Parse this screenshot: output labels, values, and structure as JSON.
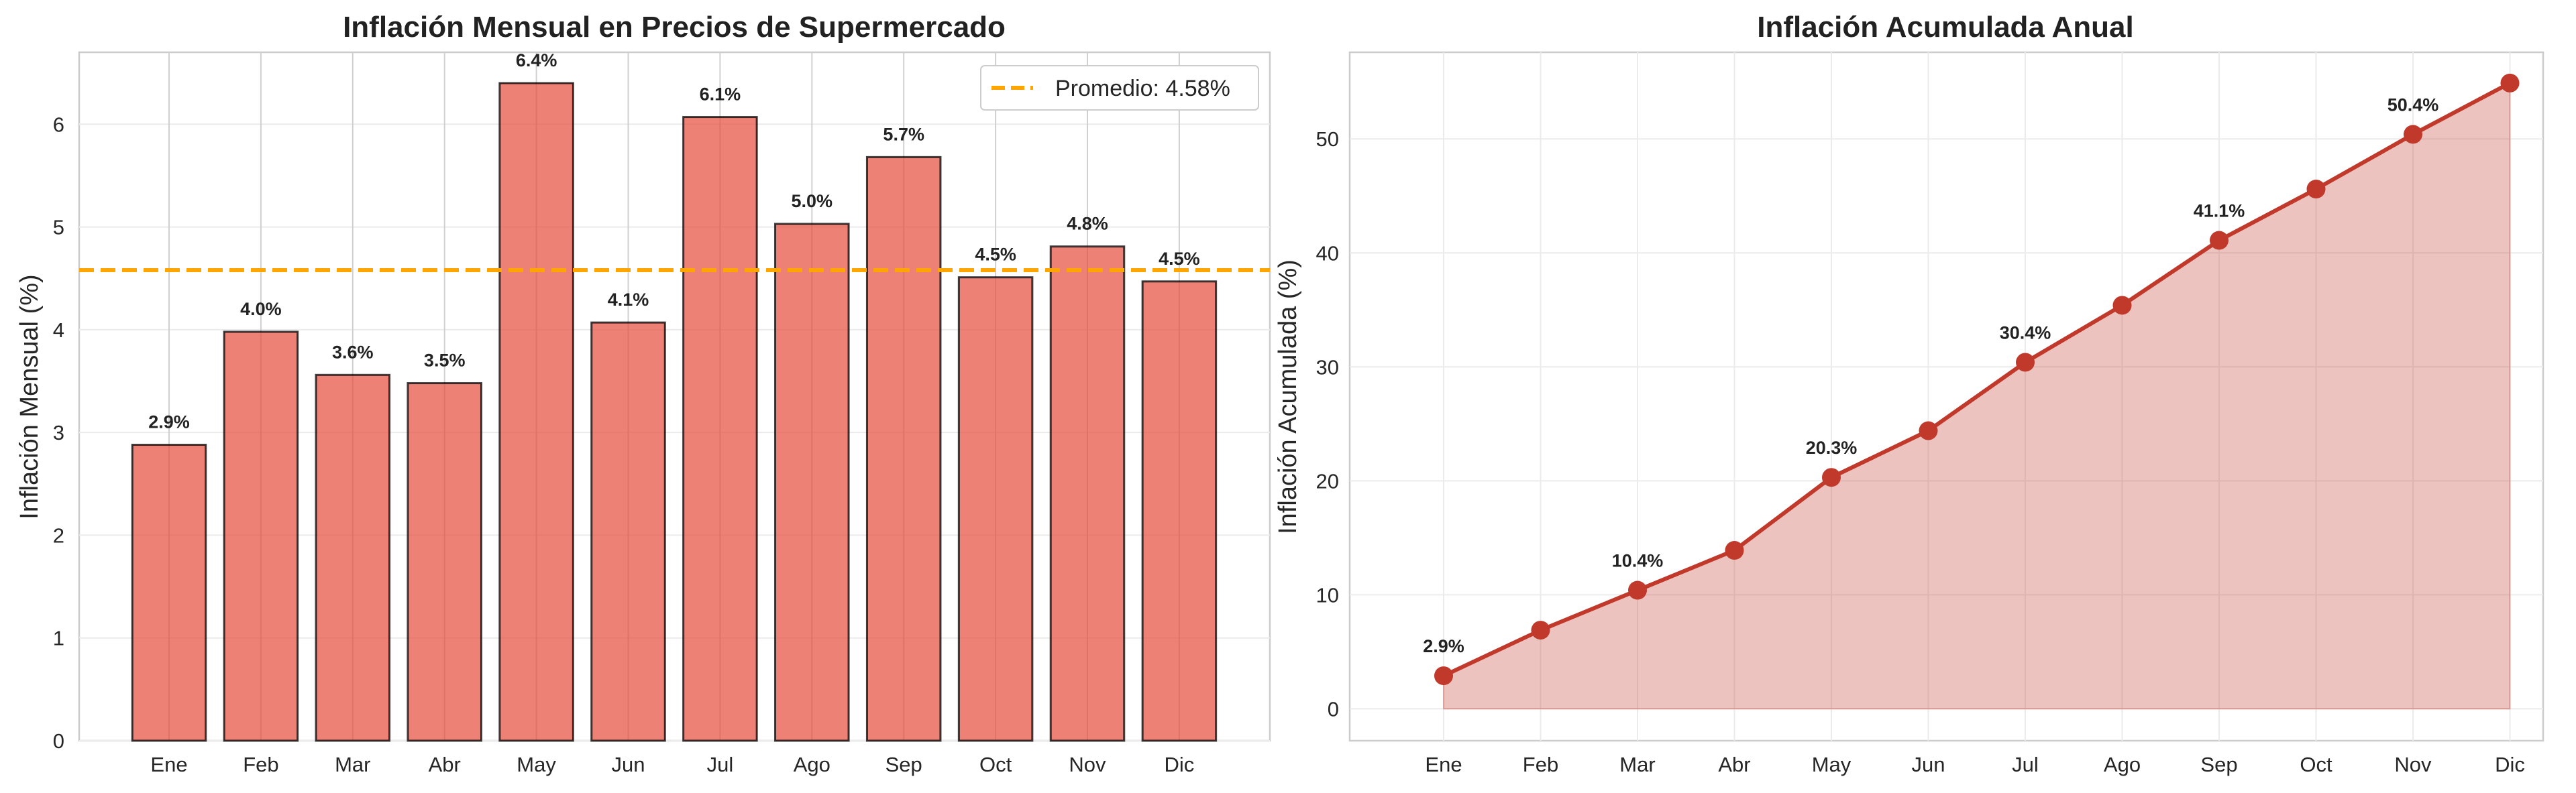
{
  "chart_data": [
    {
      "type": "bar",
      "title": "Inflación Mensual en Precios de Supermercado",
      "xlabel": "",
      "ylabel": "Inflación Mensual (%)",
      "categories": [
        "Ene",
        "Feb",
        "Mar",
        "Abr",
        "May",
        "Jun",
        "Jul",
        "Ago",
        "Sep",
        "Oct",
        "Nov",
        "Dic"
      ],
      "values": [
        2.88,
        3.98,
        3.56,
        3.48,
        6.4,
        4.07,
        6.07,
        5.03,
        5.68,
        4.51,
        4.81,
        4.47
      ],
      "data_labels": [
        "2.9%",
        "4.0%",
        "3.6%",
        "3.5%",
        "6.4%",
        "4.1%",
        "6.1%",
        "5.0%",
        "5.7%",
        "4.5%",
        "4.8%",
        "4.5%"
      ],
      "ylim": [
        0,
        6.7
      ],
      "yticks": [
        "0",
        "1",
        "2",
        "3",
        "4",
        "5",
        "6"
      ],
      "grid": true,
      "bar_color": "#e74c3c",
      "reference_line": {
        "value": 4.58,
        "label": "Promedio: 4.58%",
        "color": "#ffa500",
        "style": "dashed"
      },
      "legend": {
        "position": "top-right",
        "entries": [
          "Promedio: 4.58%"
        ]
      }
    },
    {
      "type": "area",
      "title": "Inflación Acumulada Anual",
      "xlabel": "",
      "ylabel": "Inflación Acumulada (%)",
      "categories": [
        "Ene",
        "Feb",
        "Mar",
        "Abr",
        "May",
        "Jun",
        "Jul",
        "Ago",
        "Sep",
        "Oct",
        "Nov",
        "Dic"
      ],
      "values": [
        2.9,
        6.9,
        10.4,
        13.9,
        20.3,
        24.4,
        30.4,
        35.4,
        41.1,
        45.6,
        50.4,
        54.9
      ],
      "data_labels": [
        "2.9%",
        "",
        "10.4%",
        "",
        "20.3%",
        "",
        "30.4%",
        "",
        "41.1%",
        "",
        "50.4%",
        ""
      ],
      "ylim": [
        -2.8,
        57.6
      ],
      "yticks": [
        "0",
        "10",
        "20",
        "30",
        "40",
        "50"
      ],
      "grid": true,
      "line_color": "#c0392b"
    }
  ]
}
